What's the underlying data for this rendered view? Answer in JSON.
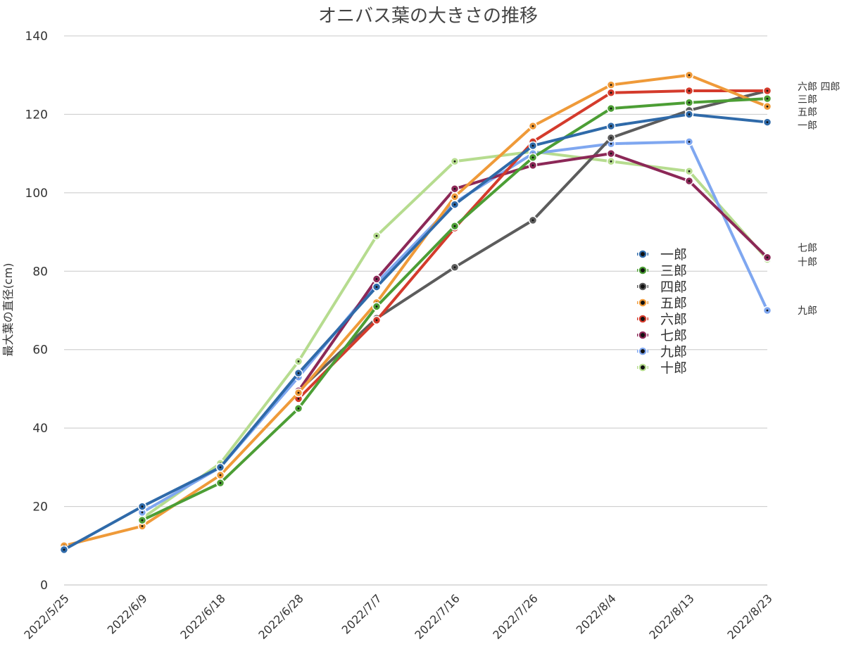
{
  "chart_data": {
    "type": "line",
    "title": "オニバス葉の大きさの推移",
    "xlabel": "",
    "ylabel": "最大葉の直径(cm)",
    "ylim": [
      0,
      140
    ],
    "yticks": [
      0,
      20,
      40,
      60,
      80,
      100,
      120,
      140
    ],
    "categories": [
      "2022/5/25",
      "2022/6/9",
      "2022/6/18",
      "2022/6/28",
      "2022/7/7",
      "2022/7/16",
      "2022/7/26",
      "2022/8/4",
      "2022/8/13",
      "2022/8/23"
    ],
    "grid": true,
    "legend_position": "right-center",
    "series": [
      {
        "name": "一郎",
        "color": "#2f6aa9",
        "values": [
          9,
          20,
          30,
          54,
          76,
          97,
          112,
          117,
          120,
          118
        ],
        "end_label": "一郎"
      },
      {
        "name": "三郎",
        "color": "#4c9e35",
        "values": [
          null,
          16.5,
          26,
          45,
          71,
          91.5,
          109,
          121.5,
          123,
          124
        ],
        "end_label": "三郎"
      },
      {
        "name": "四郎",
        "color": "#5c5c5c",
        "values": [
          null,
          null,
          null,
          49.5,
          68,
          81,
          93,
          114,
          121,
          126
        ],
        "end_label": "四郎"
      },
      {
        "name": "五郎",
        "color": "#ef9a39",
        "values": [
          10,
          15,
          28,
          49,
          72,
          99,
          117,
          127.5,
          130,
          122
        ],
        "end_label": "五郎"
      },
      {
        "name": "六郎",
        "color": "#d43b2c",
        "values": [
          null,
          null,
          null,
          47.5,
          67.5,
          91,
          113,
          125.5,
          126,
          126
        ],
        "end_label": "六郎"
      },
      {
        "name": "七郎",
        "color": "#8c2857",
        "values": [
          null,
          null,
          null,
          49.5,
          78,
          101,
          107,
          110,
          103,
          83.5
        ],
        "end_label": "七郎"
      },
      {
        "name": "九郎",
        "color": "#7fa7f0",
        "values": [
          null,
          18.5,
          30,
          53,
          77,
          97.5,
          110,
          112.5,
          113,
          70
        ],
        "end_label": "九郎"
      },
      {
        "name": "十郎",
        "color": "#b6dc8f",
        "values": [
          null,
          17,
          31,
          57,
          89,
          108,
          110.5,
          108,
          105.5,
          83
        ],
        "end_label": "十郎"
      }
    ],
    "end_labels_text": [
      {
        "text": "六郎  四郎",
        "series": [
          "六郎",
          "四郎"
        ]
      },
      {
        "text": "三郎",
        "series": [
          "三郎"
        ]
      },
      {
        "text": "五郎",
        "series": [
          "五郎"
        ]
      },
      {
        "text": "一郎",
        "series": [
          "一郎"
        ]
      },
      {
        "text": "七郎",
        "series": [
          "七郎"
        ]
      },
      {
        "text": "十郎",
        "series": [
          "十郎"
        ]
      },
      {
        "text": "九郎",
        "series": [
          "九郎"
        ]
      }
    ]
  }
}
